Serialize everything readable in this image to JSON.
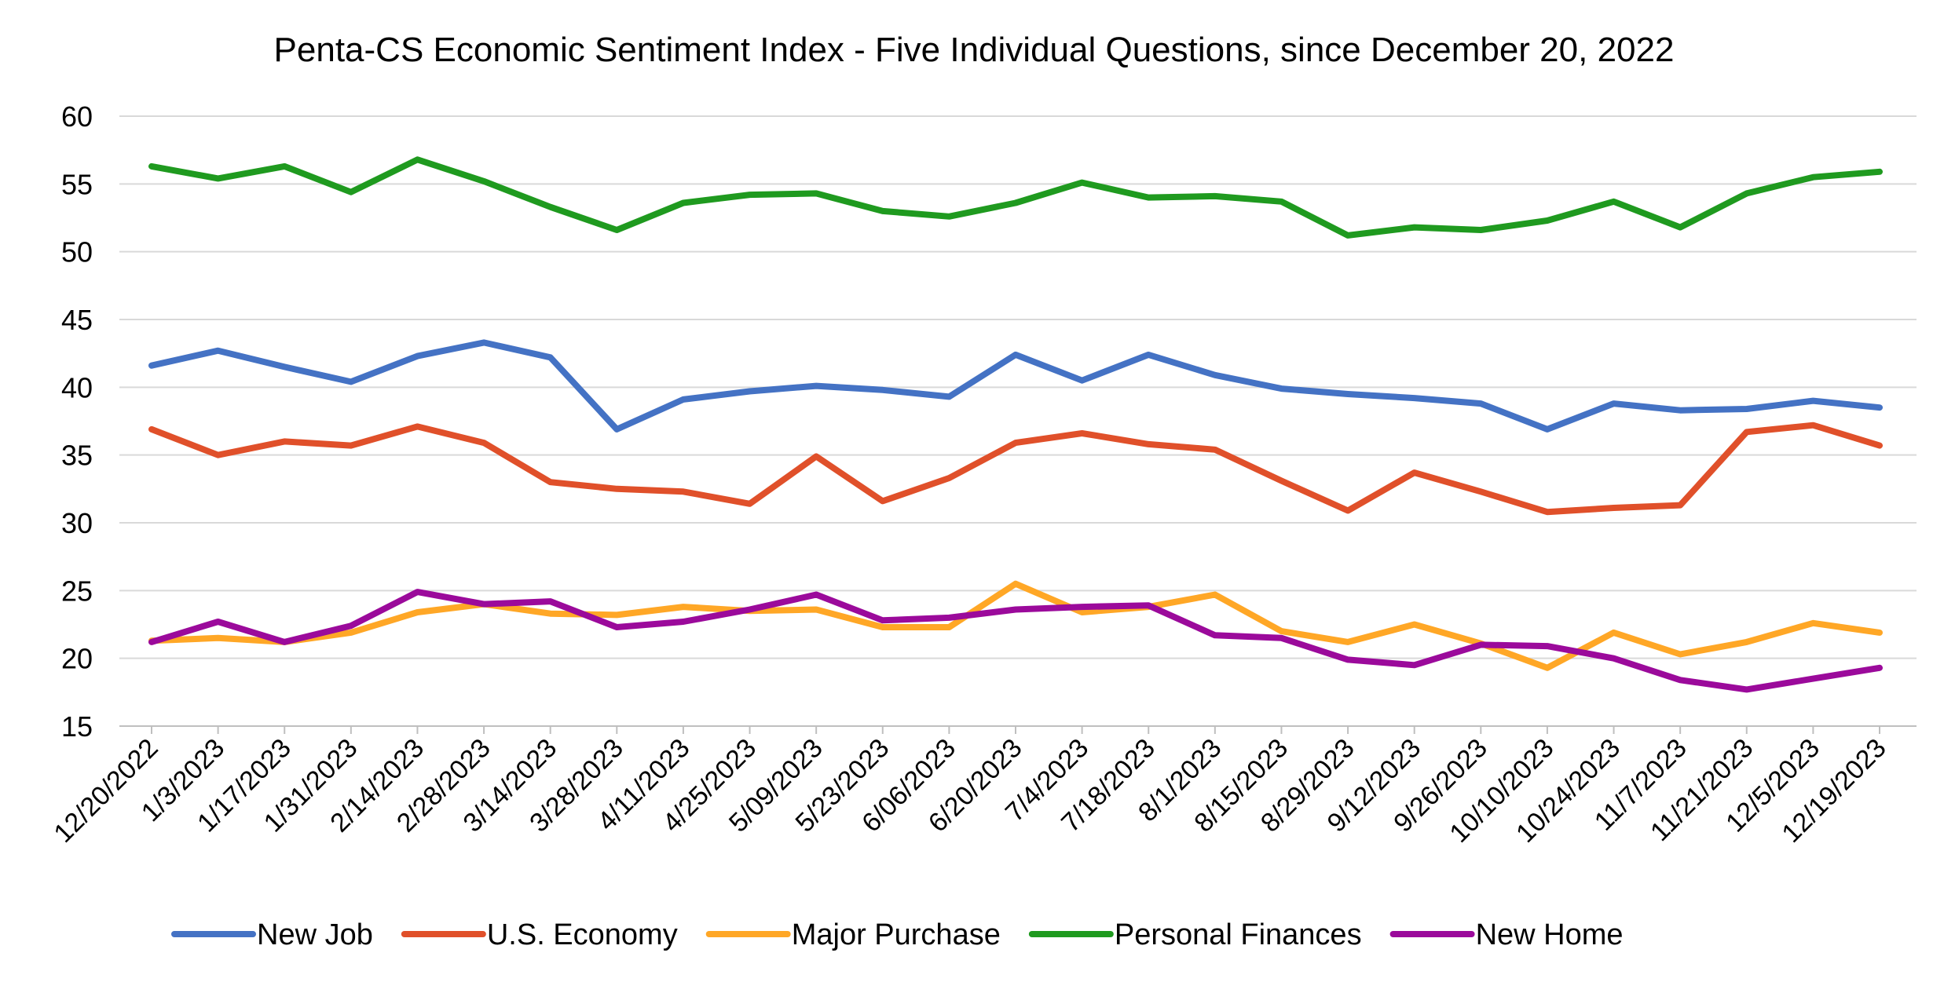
{
  "chart_data": {
    "type": "line",
    "title": "Penta-CS Economic Sentiment Index - Five Individual Questions, since December 20, 2022",
    "xlabel": "",
    "ylabel": "",
    "ylim": [
      15,
      60
    ],
    "yticks": [
      15,
      20,
      25,
      30,
      35,
      40,
      45,
      50,
      55,
      60
    ],
    "grid": true,
    "legend_position": "bottom",
    "categories": [
      "12/20/2022",
      "1/3/2023",
      "1/17/2023",
      "1/31/2023",
      "2/14/2023",
      "2/28/2023",
      "3/14/2023",
      "3/28/2023",
      "4/11/2023",
      "4/25/2023",
      "5/09/2023",
      "5/23/2023",
      "6/06/2023",
      "6/20/2023",
      "7/4/2023",
      "7/18/2023",
      "8/1/2023",
      "8/15/2023",
      "8/29/2023",
      "9/12/2023",
      "9/26/2023",
      "10/10/2023",
      "10/24/2023",
      "11/7/2023",
      "11/21/2023",
      "12/5/2023",
      "12/19/2023"
    ],
    "series": [
      {
        "name": "New Job",
        "color": "#4472c4",
        "values": [
          41.6,
          42.7,
          41.5,
          40.4,
          42.3,
          43.3,
          42.2,
          36.9,
          39.1,
          39.7,
          40.1,
          39.8,
          39.3,
          42.4,
          40.5,
          42.4,
          40.9,
          39.9,
          39.5,
          39.2,
          38.8,
          36.9,
          38.8,
          38.3,
          38.4,
          39.0,
          38.5
        ]
      },
      {
        "name": "U.S. Economy",
        "color": "#e0502a",
        "values": [
          36.9,
          35.0,
          36.0,
          35.7,
          37.1,
          35.9,
          33.0,
          32.5,
          32.3,
          31.4,
          34.9,
          31.6,
          33.3,
          35.9,
          36.6,
          35.8,
          35.4,
          33.1,
          30.9,
          33.7,
          32.3,
          30.8,
          31.1,
          31.3,
          36.7,
          37.2,
          35.7
        ]
      },
      {
        "name": "Major Purchase",
        "color": "#ffa726",
        "values": [
          21.3,
          21.5,
          21.2,
          21.9,
          23.4,
          24.0,
          23.3,
          23.2,
          23.8,
          23.5,
          23.6,
          22.3,
          22.3,
          25.5,
          23.4,
          23.8,
          24.7,
          22.0,
          21.2,
          22.5,
          21.1,
          19.3,
          21.9,
          20.3,
          21.2,
          22.6,
          21.9
        ]
      },
      {
        "name": "Personal Finances",
        "color": "#1f9a1f",
        "values": [
          56.3,
          55.4,
          56.3,
          54.4,
          56.8,
          55.2,
          53.3,
          51.6,
          53.6,
          54.2,
          54.3,
          53.0,
          52.6,
          53.6,
          55.1,
          54.0,
          54.1,
          53.7,
          51.2,
          51.8,
          51.6,
          52.3,
          53.7,
          51.8,
          54.3,
          55.5,
          55.9
        ]
      },
      {
        "name": "New Home",
        "color": "#9b0a9b",
        "values": [
          21.2,
          22.7,
          21.2,
          22.4,
          24.9,
          24.0,
          24.2,
          22.3,
          22.7,
          23.6,
          24.7,
          22.8,
          23.0,
          23.6,
          23.8,
          23.9,
          21.7,
          21.5,
          19.9,
          19.5,
          21.0,
          20.9,
          20.0,
          18.4,
          17.7,
          18.5,
          19.3
        ]
      }
    ]
  }
}
